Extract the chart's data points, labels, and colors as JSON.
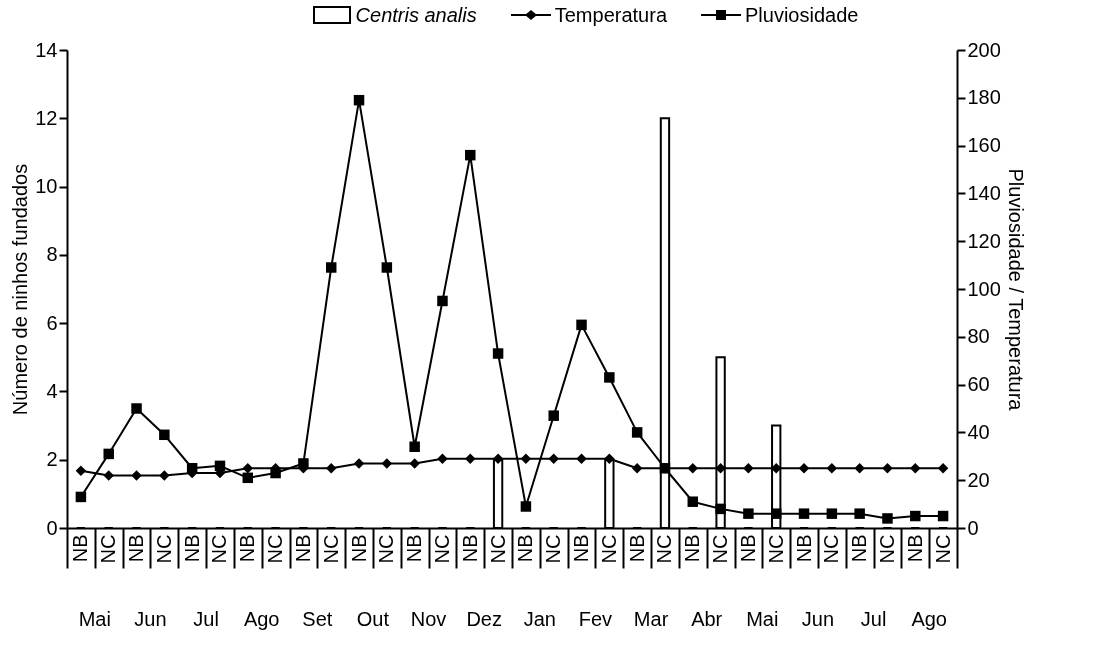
{
  "chart_data": {
    "type": "bar",
    "categories": [
      "NB",
      "NC",
      "NB",
      "NC",
      "NB",
      "NC",
      "NB",
      "NC",
      "NB",
      "NC",
      "NB",
      "NC",
      "NB",
      "NC",
      "NB",
      "NC",
      "NB",
      "NC",
      "NB",
      "NC",
      "NB",
      "NC",
      "NB",
      "NC",
      "NB",
      "NC",
      "NB",
      "NC",
      "NB",
      "NC",
      "NB",
      "NC"
    ],
    "annotations": [
      "Mai",
      "Jun",
      "Jul",
      "Ago",
      "Set",
      "Out",
      "Nov",
      "Dez",
      "Jan",
      "Fev",
      "Mar",
      "Abr",
      "Mai",
      "Jun",
      "Jul",
      "Ago"
    ],
    "ylabel": "Número de ninhos fundados",
    "y2label": "Pluviosidade / Temperatura",
    "ylim": [
      0,
      14
    ],
    "yticks": [
      0,
      2,
      4,
      6,
      8,
      10,
      12,
      14
    ],
    "y2lim": [
      0,
      200
    ],
    "y2ticks": [
      0,
      20,
      40,
      60,
      80,
      100,
      120,
      140,
      160,
      180,
      200
    ],
    "grid": false,
    "legend": "top",
    "series": [
      {
        "name": "Centris analis",
        "color": "#ffffff",
        "values": [
          0,
          0,
          0,
          0,
          0,
          0,
          0,
          0,
          0,
          0,
          0,
          0,
          0,
          0,
          0,
          2,
          0,
          0,
          0,
          2,
          0,
          12,
          0,
          5,
          0,
          3,
          0,
          0,
          0,
          0,
          0,
          0
        ]
      },
      {
        "name": "Temperatura",
        "type": "line",
        "axis": "y2",
        "color": "#000000",
        "marker": "diamond",
        "values": [
          24,
          22,
          22,
          22,
          23,
          23,
          25,
          25,
          25,
          25,
          27,
          27,
          27,
          29,
          29,
          29,
          29,
          29,
          29,
          29,
          25,
          25,
          25,
          25,
          25,
          25,
          25,
          25,
          25,
          25,
          25,
          25
        ]
      },
      {
        "name": "Pluviosidade",
        "type": "line",
        "axis": "y2",
        "color": "#000000",
        "marker": "square",
        "values": [
          13,
          31,
          50,
          39,
          25,
          26,
          21,
          23,
          27,
          109,
          179,
          109,
          34,
          95,
          156,
          73,
          9,
          47,
          85,
          63,
          40,
          25,
          11,
          8,
          6,
          6,
          6,
          6,
          6,
          4,
          5,
          5
        ]
      }
    ]
  }
}
